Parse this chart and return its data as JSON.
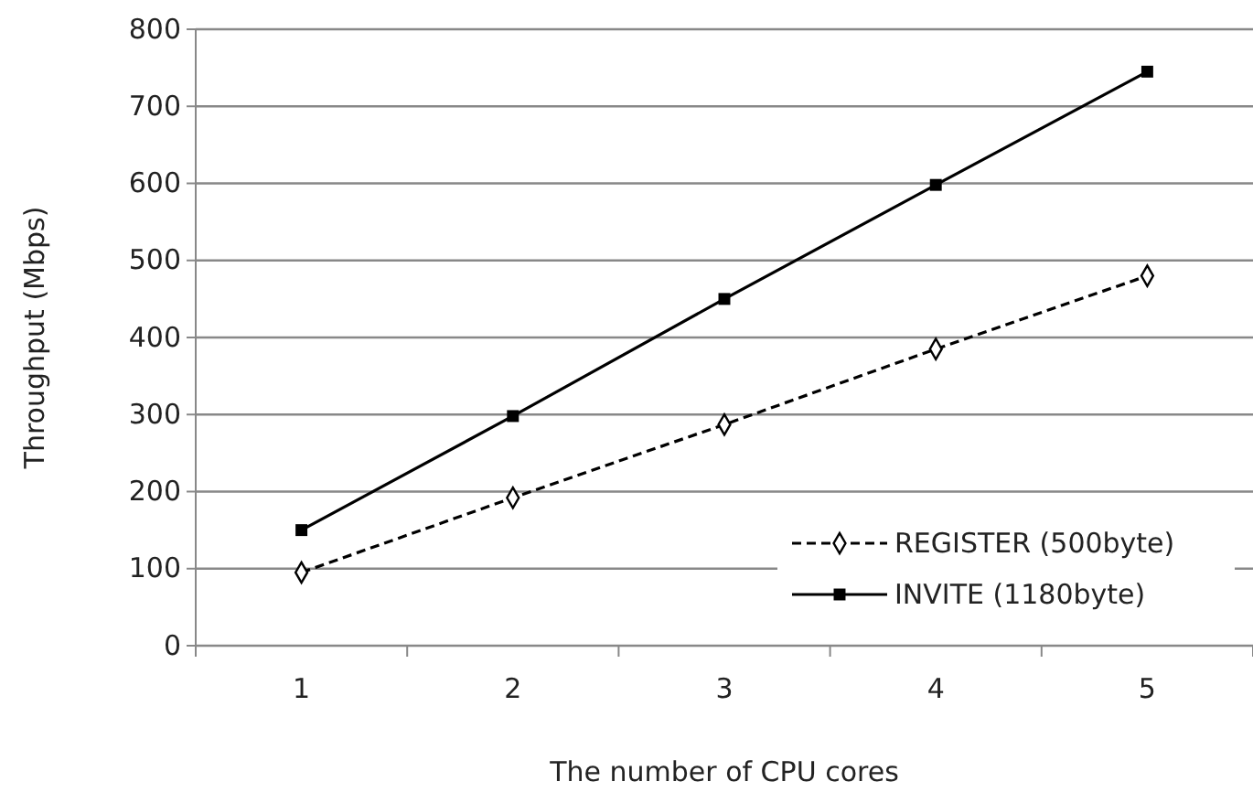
{
  "chart_data": {
    "type": "line",
    "xlabel": "The number of CPU cores",
    "ylabel": "Throughput (Mbps)",
    "categories": [
      "1",
      "2",
      "3",
      "4",
      "5"
    ],
    "series": [
      {
        "name": "REGISTER (500byte)",
        "color": "#000000",
        "values": [
          95,
          192,
          287,
          385,
          480
        ],
        "marker": "diamond",
        "line_style": "dashed"
      },
      {
        "name": "INVITE (1180byte)",
        "color": "#000000",
        "values": [
          150,
          298,
          450,
          598,
          745
        ],
        "marker": "square",
        "line_style": "solid"
      }
    ],
    "ylim": [
      0,
      800
    ],
    "yticks": [
      0,
      100,
      200,
      300,
      400,
      500,
      600,
      700,
      800
    ],
    "grid": "y",
    "legend": "bottom right"
  }
}
